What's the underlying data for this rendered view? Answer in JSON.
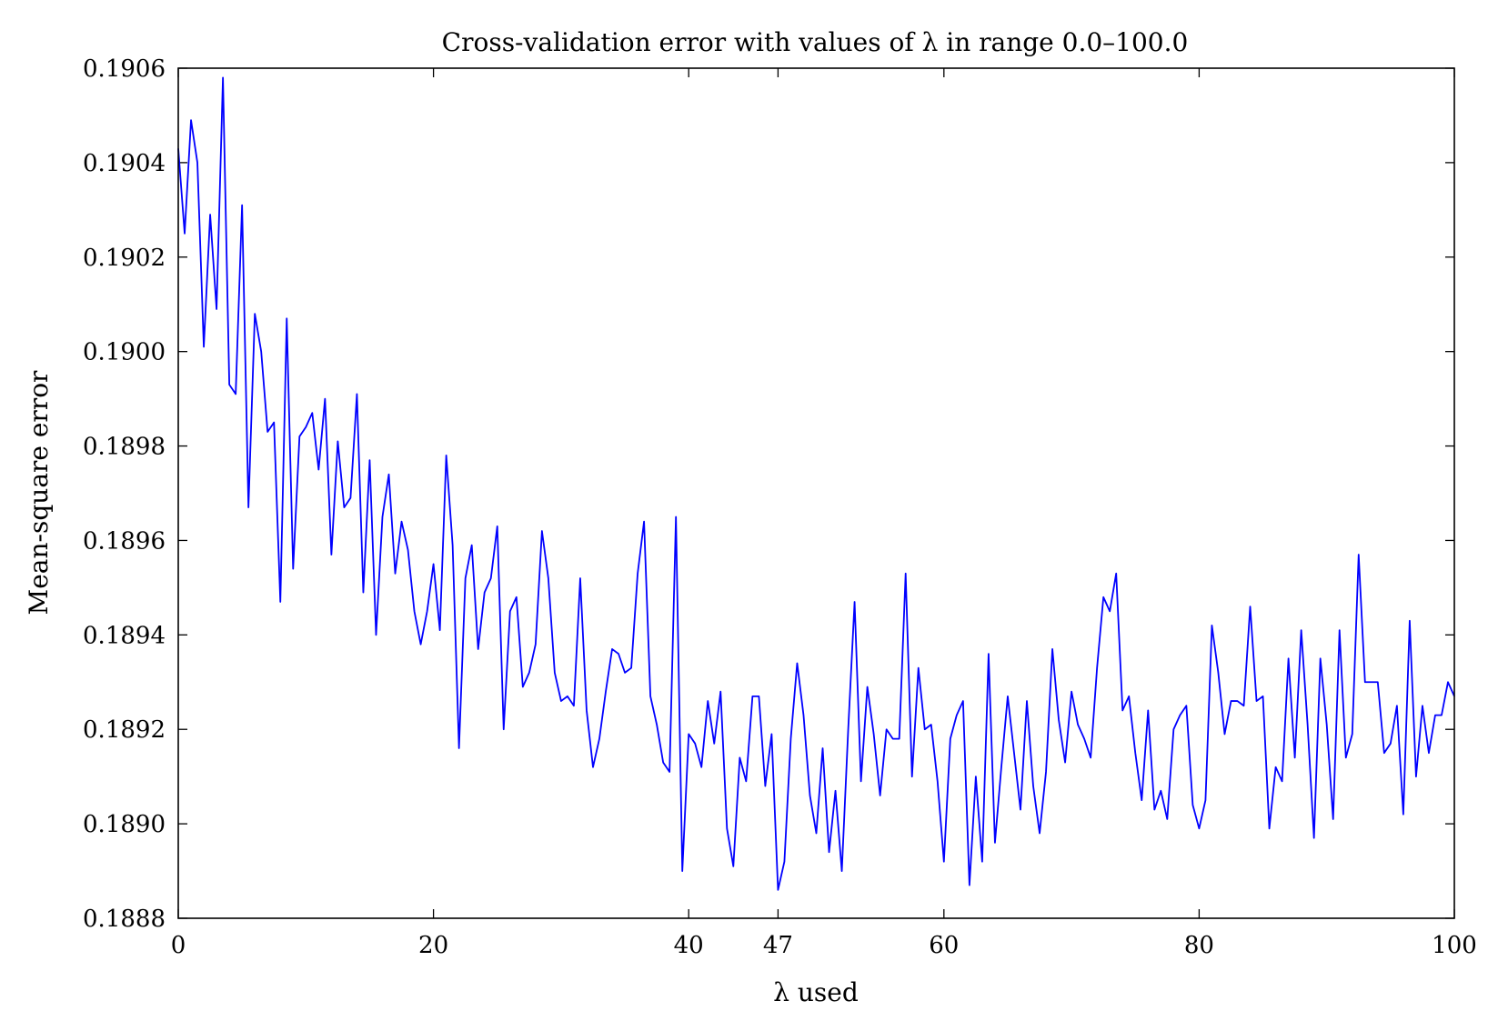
{
  "chart_data": {
    "type": "line",
    "title": "Cross-validation error with values of λ in range 0.0–100.0",
    "xlabel": "λ used",
    "ylabel": "Mean-square error",
    "xlim": [
      0,
      100
    ],
    "ylim": [
      0.1888,
      0.1906
    ],
    "grid": false,
    "legend": "none",
    "x_ticks": [
      0,
      20,
      40,
      47,
      60,
      80,
      100
    ],
    "x_tick_labels": [
      "0",
      "20",
      "40",
      "47",
      "60",
      "80",
      "100"
    ],
    "y_ticks": [
      0.1888,
      0.189,
      0.1892,
      0.1894,
      0.1896,
      0.1898,
      0.19,
      0.1902,
      0.1904,
      0.1906
    ],
    "y_tick_labels": [
      "0.1888",
      "0.1890",
      "0.1892",
      "0.1894",
      "0.1896",
      "0.1898",
      "0.1900",
      "0.1902",
      "0.1904",
      "0.1906"
    ],
    "series": [
      {
        "color": "#0000ff",
        "x": [
          0,
          0.5,
          1,
          1.5,
          2,
          2.5,
          3,
          3.5,
          4,
          4.5,
          5,
          5.5,
          6,
          6.5,
          7,
          7.5,
          8,
          8.5,
          9,
          9.5,
          10,
          10.5,
          11,
          11.5,
          12,
          12.5,
          13,
          13.5,
          14,
          14.5,
          15,
          15.5,
          16,
          16.5,
          17,
          17.5,
          18,
          18.5,
          19,
          19.5,
          20,
          20.5,
          21,
          21.5,
          22,
          22.5,
          23,
          23.5,
          24,
          24.5,
          25,
          25.5,
          26,
          26.5,
          27,
          27.5,
          28,
          28.5,
          29,
          29.5,
          30,
          30.5,
          31,
          31.5,
          32,
          32.5,
          33,
          33.5,
          34,
          34.5,
          35,
          35.5,
          36,
          36.5,
          37,
          37.5,
          38,
          38.5,
          39,
          39.5,
          40,
          40.5,
          41,
          41.5,
          42,
          42.5,
          43,
          43.5,
          44,
          44.5,
          45,
          45.5,
          46,
          46.5,
          47,
          47.5,
          48,
          48.5,
          49,
          49.5,
          50,
          50.5,
          51,
          51.5,
          52,
          52.5,
          53,
          53.5,
          54,
          54.5,
          55,
          55.5,
          56,
          56.5,
          57,
          57.5,
          58,
          58.5,
          59,
          59.5,
          60,
          60.5,
          61,
          61.5,
          62,
          62.5,
          63,
          63.5,
          64,
          64.5,
          65,
          65.5,
          66,
          66.5,
          67,
          67.5,
          68,
          68.5,
          69,
          69.5,
          70,
          70.5,
          71,
          71.5,
          72,
          72.5,
          73,
          73.5,
          74,
          74.5,
          75,
          75.5,
          76,
          76.5,
          77,
          77.5,
          78,
          78.5,
          79,
          79.5,
          80,
          80.5,
          81,
          81.5,
          82,
          82.5,
          83,
          83.5,
          84,
          84.5,
          85,
          85.5,
          86,
          86.5,
          87,
          87.5,
          88,
          88.5,
          89,
          89.5,
          90,
          90.5,
          91,
          91.5,
          92,
          92.5,
          93,
          93.5,
          94,
          94.5,
          95,
          95.5,
          96,
          96.5,
          97,
          97.5,
          98,
          98.5,
          99,
          99.5,
          100
        ],
        "y": [
          0.19043,
          0.19025,
          0.19049,
          0.1904,
          0.19001,
          0.19029,
          0.19009,
          0.19058,
          0.18993,
          0.18991,
          0.19031,
          0.18967,
          0.19008,
          0.19,
          0.18983,
          0.18985,
          0.18947,
          0.19007,
          0.18954,
          0.18982,
          0.18984,
          0.18987,
          0.18975,
          0.1899,
          0.18957,
          0.18981,
          0.18967,
          0.18969,
          0.18991,
          0.18949,
          0.18977,
          0.1894,
          0.18965,
          0.18974,
          0.18953,
          0.18964,
          0.18958,
          0.18945,
          0.18938,
          0.18945,
          0.18955,
          0.18941,
          0.18978,
          0.18959,
          0.18916,
          0.18952,
          0.18959,
          0.18937,
          0.18949,
          0.18952,
          0.18963,
          0.1892,
          0.18945,
          0.18948,
          0.18929,
          0.18932,
          0.18938,
          0.18962,
          0.18952,
          0.18932,
          0.18926,
          0.18927,
          0.18925,
          0.18952,
          0.18924,
          0.18912,
          0.18918,
          0.18928,
          0.18937,
          0.18936,
          0.18932,
          0.18933,
          0.18953,
          0.18964,
          0.18927,
          0.18921,
          0.18913,
          0.18911,
          0.18965,
          0.1889,
          0.18919,
          0.18917,
          0.18912,
          0.18926,
          0.18917,
          0.18928,
          0.18899,
          0.18891,
          0.18914,
          0.18909,
          0.18927,
          0.18927,
          0.18908,
          0.18919,
          0.18886,
          0.18892,
          0.18918,
          0.18934,
          0.18923,
          0.18906,
          0.18898,
          0.18916,
          0.18894,
          0.18907,
          0.1889,
          0.1892,
          0.18947,
          0.18909,
          0.18929,
          0.18919,
          0.18906,
          0.1892,
          0.18918,
          0.18918,
          0.18953,
          0.1891,
          0.18933,
          0.1892,
          0.18921,
          0.18909,
          0.18892,
          0.18918,
          0.18923,
          0.18926,
          0.18887,
          0.1891,
          0.18892,
          0.18936,
          0.18896,
          0.18912,
          0.18927,
          0.18915,
          0.18903,
          0.18926,
          0.18908,
          0.18898,
          0.18911,
          0.18937,
          0.18922,
          0.18913,
          0.18928,
          0.18921,
          0.18918,
          0.18914,
          0.18933,
          0.18948,
          0.18945,
          0.18953,
          0.18924,
          0.18927,
          0.18915,
          0.18905,
          0.18924,
          0.18903,
          0.18907,
          0.18901,
          0.1892,
          0.18923,
          0.18925,
          0.18904,
          0.18899,
          0.18905,
          0.18942,
          0.18932,
          0.18919,
          0.18926,
          0.18926,
          0.18925,
          0.18946,
          0.18926,
          0.18927,
          0.18899,
          0.18912,
          0.18909,
          0.18935,
          0.18914,
          0.18941,
          0.18921,
          0.18897,
          0.18935,
          0.18921,
          0.18901,
          0.18941,
          0.18914,
          0.18919,
          0.18957,
          0.1893,
          0.1893,
          0.1893,
          0.18915,
          0.18917,
          0.18925,
          0.18902,
          0.18943,
          0.1891,
          0.18925,
          0.18915,
          0.18923,
          0.18923,
          0.1893,
          0.18927
        ]
      }
    ]
  }
}
